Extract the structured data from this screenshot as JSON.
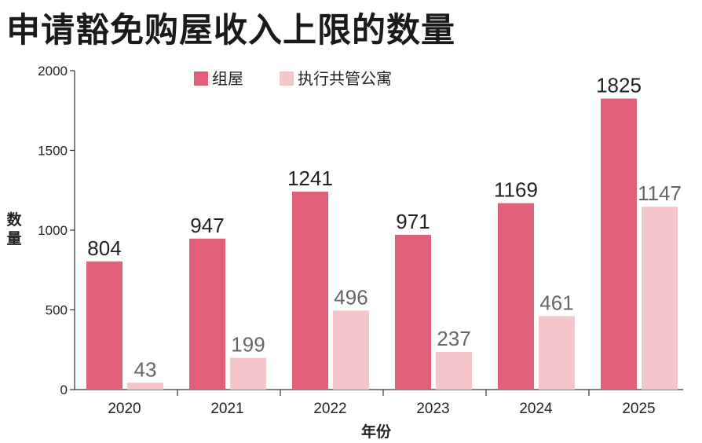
{
  "title": "申请豁免购屋收入上限的数量",
  "chart_data": {
    "type": "bar",
    "title": "申请豁免购屋收入上限的数量",
    "xlabel": "年份",
    "ylabel": "数量",
    "categories": [
      "2020",
      "2021",
      "2022",
      "2023",
      "2024",
      "2025"
    ],
    "series": [
      {
        "name": "组屋",
        "color": "#e0607a",
        "values": [
          804,
          947,
          1241,
          971,
          1169,
          1825
        ]
      },
      {
        "name": "执行共管公寓",
        "color": "#f4c5c9",
        "values": [
          43,
          199,
          496,
          237,
          461,
          1147
        ]
      }
    ],
    "ylim": [
      0,
      2000
    ],
    "yticks": [
      0,
      500,
      1000,
      1500,
      2000
    ],
    "grid": false,
    "legend_position": "top-center"
  }
}
